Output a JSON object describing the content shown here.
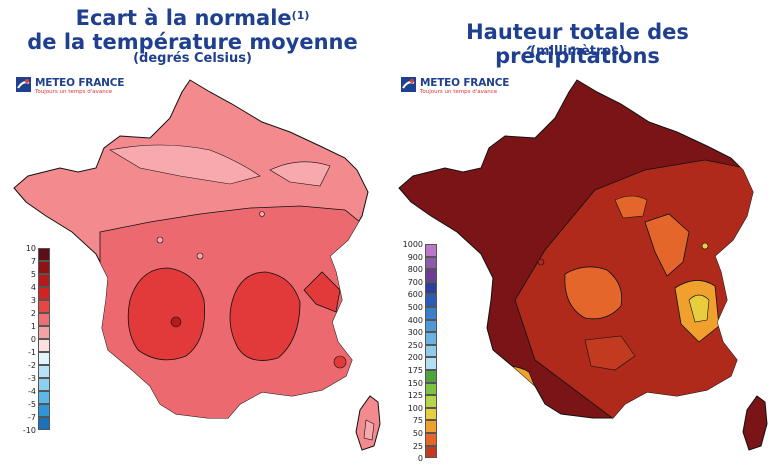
{
  "left_panel": {
    "title_line1": "Ecart à la normale",
    "title_sup": "(1)",
    "title_line2": "de la température moyenne",
    "subtitle": "(degrés Celsius)",
    "logo": {
      "brand": "METEO FRANCE",
      "tagline": "Toujours un temps d'avance"
    },
    "legend": {
      "labels": [
        "10",
        "7",
        "5",
        "4",
        "3",
        "2",
        "1",
        "0",
        "-1",
        "-2",
        "-3",
        "-4",
        "-5",
        "-7",
        "-10"
      ],
      "colors": [
        "#5b0f15",
        "#8e1414",
        "#b51b1b",
        "#d32222",
        "#e84545",
        "#ee6f74",
        "#f2a1a5",
        "#fbe0e0",
        "#e4f4fb",
        "#b8e3f6",
        "#8cd0f0",
        "#5bb8e7",
        "#2f96d6",
        "#1a72b8"
      ]
    }
  },
  "right_panel": {
    "title_line1": "Hauteur totale des précipitations",
    "subtitle": "(millimètres)",
    "logo": {
      "brand": "METEO FRANCE",
      "tagline": "Toujours un temps d'avance"
    },
    "legend": {
      "labels": [
        "1000",
        "900",
        "800",
        "700",
        "600",
        "500",
        "400",
        "300",
        "250",
        "200",
        "175",
        "150",
        "125",
        "100",
        "75",
        "50",
        "25",
        "0"
      ],
      "colors": [
        "#b978c8",
        "#8e5aac",
        "#6b3d94",
        "#2c3f9d",
        "#2a5bb5",
        "#3a7fc9",
        "#4f9ad6",
        "#6cb3e2",
        "#8fcbeb",
        "#b5e0f2",
        "#4fa33c",
        "#7fc243",
        "#b5d54a",
        "#e8cd3f",
        "#f0a02d",
        "#e4662a",
        "#c23a1f"
      ]
    }
  }
}
